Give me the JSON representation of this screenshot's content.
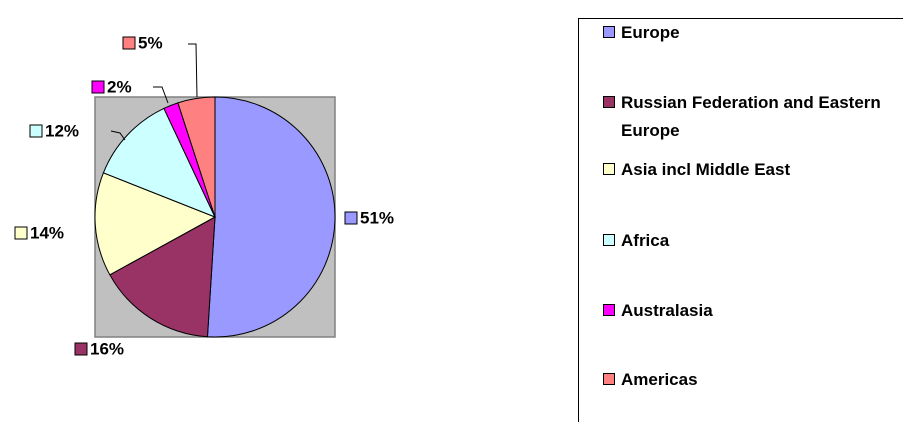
{
  "chart_data": {
    "type": "pie",
    "categories": [
      "Europe",
      "Russian Federation and Eastern Europe",
      "Asia incl Middle East",
      "Africa",
      "Australasia",
      "Americas"
    ],
    "values": [
      51,
      16,
      14,
      12,
      2,
      5
    ],
    "value_labels": [
      "51%",
      "16%",
      "14%",
      "12%",
      "2%",
      "5%"
    ],
    "colors": [
      "#9999ff",
      "#993366",
      "#ffffcc",
      "#ccffff",
      "#ff00ff",
      "#ff8080"
    ]
  }
}
